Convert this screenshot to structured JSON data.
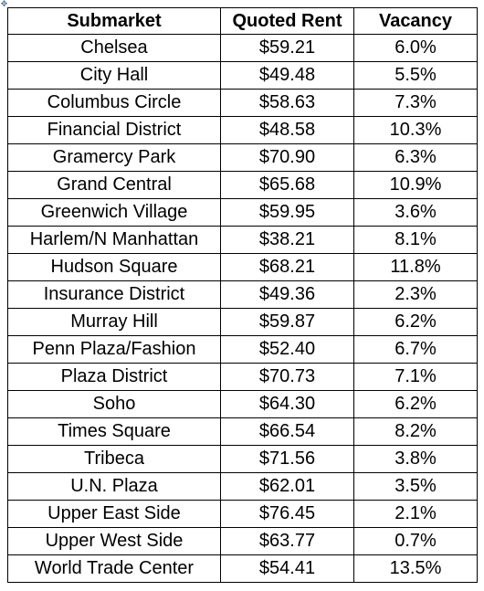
{
  "table": {
    "headers": [
      "Submarket",
      "Quoted Rent",
      "Vacancy"
    ],
    "rows": [
      [
        "Chelsea",
        "$59.21",
        "6.0%"
      ],
      [
        "City Hall",
        "$49.48",
        "5.5%"
      ],
      [
        "Columbus Circle",
        "$58.63",
        "7.3%"
      ],
      [
        "Financial District",
        "$48.58",
        "10.3%"
      ],
      [
        "Gramercy Park",
        "$70.90",
        "6.3%"
      ],
      [
        "Grand Central",
        "$65.68",
        "10.9%"
      ],
      [
        "Greenwich Village",
        "$59.95",
        "3.6%"
      ],
      [
        "Harlem/N Manhattan",
        "$38.21",
        "8.1%"
      ],
      [
        "Hudson Square",
        "$68.21",
        "11.8%"
      ],
      [
        "Insurance District",
        "$49.36",
        "2.3%"
      ],
      [
        "Murray Hill",
        "$59.87",
        "6.2%"
      ],
      [
        "Penn Plaza/Fashion",
        "$52.40",
        "6.7%"
      ],
      [
        "Plaza District",
        "$70.73",
        "7.1%"
      ],
      [
        "Soho",
        "$64.30",
        "6.2%"
      ],
      [
        "Times Square",
        "$66.54",
        "8.2%"
      ],
      [
        "Tribeca",
        "$71.56",
        "3.8%"
      ],
      [
        "U.N. Plaza",
        "$62.01",
        "3.5%"
      ],
      [
        "Upper East Side",
        "$76.45",
        "2.1%"
      ],
      [
        "Upper West Side",
        "$63.77",
        "0.7%"
      ],
      [
        "World Trade Center",
        "$54.41",
        "13.5%"
      ]
    ]
  },
  "icons": {
    "move_handle": "move-icon"
  }
}
